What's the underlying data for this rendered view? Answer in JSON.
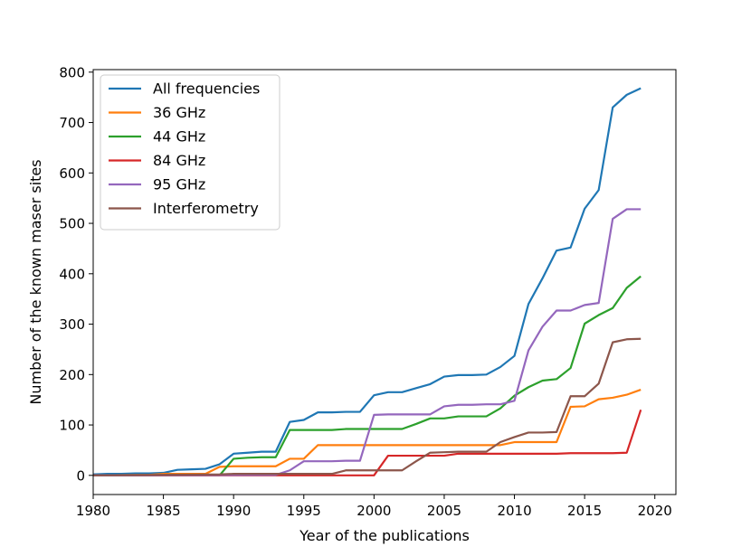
{
  "chart_data": {
    "type": "line",
    "title": "",
    "xlabel": "Year of the publications",
    "ylabel": "Number of the known maser sites",
    "xlim": [
      1980,
      2021.5
    ],
    "ylim": [
      -38,
      805
    ],
    "xticks": [
      1980,
      1985,
      1990,
      1995,
      2000,
      2005,
      2010,
      2015,
      2020
    ],
    "yticks": [
      0,
      100,
      200,
      300,
      400,
      500,
      600,
      700,
      800
    ],
    "grid": false,
    "legend_position": "upper-left",
    "series": [
      {
        "name": "All frequencies",
        "color": "#1f77b4",
        "points": [
          [
            1980,
            2
          ],
          [
            1981,
            3
          ],
          [
            1982,
            3
          ],
          [
            1983,
            4
          ],
          [
            1984,
            4
          ],
          [
            1985,
            5
          ],
          [
            1986,
            11
          ],
          [
            1987,
            12
          ],
          [
            1988,
            13
          ],
          [
            1989,
            22
          ],
          [
            1990,
            43
          ],
          [
            1991,
            45
          ],
          [
            1992,
            47
          ],
          [
            1993,
            47
          ],
          [
            1994,
            106
          ],
          [
            1995,
            110
          ],
          [
            1996,
            125
          ],
          [
            1997,
            125
          ],
          [
            1998,
            126
          ],
          [
            1999,
            126
          ],
          [
            2000,
            159
          ],
          [
            2001,
            165
          ],
          [
            2002,
            165
          ],
          [
            2003,
            173
          ],
          [
            2004,
            181
          ],
          [
            2005,
            196
          ],
          [
            2006,
            199
          ],
          [
            2007,
            199
          ],
          [
            2008,
            200
          ],
          [
            2009,
            215
          ],
          [
            2010,
            237
          ],
          [
            2011,
            340
          ],
          [
            2012,
            391
          ],
          [
            2013,
            446
          ],
          [
            2014,
            452
          ],
          [
            2015,
            529
          ],
          [
            2016,
            566
          ],
          [
            2017,
            730
          ],
          [
            2018,
            755
          ],
          [
            2019,
            768
          ]
        ]
      },
      {
        "name": "36 GHz",
        "color": "#ff7f0e",
        "points": [
          [
            1980,
            0
          ],
          [
            1984,
            1
          ],
          [
            1985,
            3
          ],
          [
            1986,
            3
          ],
          [
            1987,
            3
          ],
          [
            1988,
            3
          ],
          [
            1989,
            17
          ],
          [
            1990,
            18
          ],
          [
            1991,
            18
          ],
          [
            1992,
            18
          ],
          [
            1993,
            18
          ],
          [
            1994,
            33
          ],
          [
            1995,
            33
          ],
          [
            1996,
            60
          ],
          [
            1997,
            60
          ],
          [
            1998,
            60
          ],
          [
            1999,
            60
          ],
          [
            2000,
            60
          ],
          [
            2001,
            60
          ],
          [
            2002,
            60
          ],
          [
            2003,
            60
          ],
          [
            2004,
            60
          ],
          [
            2005,
            60
          ],
          [
            2006,
            60
          ],
          [
            2007,
            60
          ],
          [
            2008,
            60
          ],
          [
            2009,
            60
          ],
          [
            2010,
            66
          ],
          [
            2011,
            66
          ],
          [
            2012,
            66
          ],
          [
            2013,
            66
          ],
          [
            2014,
            136
          ],
          [
            2015,
            137
          ],
          [
            2016,
            151
          ],
          [
            2017,
            154
          ],
          [
            2018,
            160
          ],
          [
            2019,
            170
          ]
        ]
      },
      {
        "name": "44 GHz",
        "color": "#2ca02c",
        "points": [
          [
            1980,
            0
          ],
          [
            1989,
            0
          ],
          [
            1990,
            33
          ],
          [
            1991,
            35
          ],
          [
            1992,
            36
          ],
          [
            1993,
            36
          ],
          [
            1994,
            90
          ],
          [
            1995,
            90
          ],
          [
            1996,
            90
          ],
          [
            1997,
            90
          ],
          [
            1998,
            92
          ],
          [
            1999,
            92
          ],
          [
            2000,
            92
          ],
          [
            2001,
            92
          ],
          [
            2002,
            92
          ],
          [
            2003,
            102
          ],
          [
            2004,
            113
          ],
          [
            2005,
            113
          ],
          [
            2006,
            117
          ],
          [
            2007,
            117
          ],
          [
            2008,
            117
          ],
          [
            2009,
            133
          ],
          [
            2010,
            158
          ],
          [
            2011,
            175
          ],
          [
            2012,
            188
          ],
          [
            2013,
            191
          ],
          [
            2014,
            213
          ],
          [
            2015,
            301
          ],
          [
            2016,
            318
          ],
          [
            2017,
            332
          ],
          [
            2018,
            372
          ],
          [
            2019,
            395
          ]
        ]
      },
      {
        "name": "84 GHz",
        "color": "#d62728",
        "points": [
          [
            1980,
            0
          ],
          [
            1999,
            0
          ],
          [
            2000,
            0
          ],
          [
            2001,
            39
          ],
          [
            2002,
            39
          ],
          [
            2003,
            39
          ],
          [
            2004,
            39
          ],
          [
            2005,
            39
          ],
          [
            2006,
            43
          ],
          [
            2007,
            43
          ],
          [
            2008,
            43
          ],
          [
            2009,
            43
          ],
          [
            2010,
            43
          ],
          [
            2011,
            43
          ],
          [
            2012,
            43
          ],
          [
            2013,
            43
          ],
          [
            2014,
            44
          ],
          [
            2015,
            44
          ],
          [
            2016,
            44
          ],
          [
            2017,
            44
          ],
          [
            2018,
            45
          ],
          [
            2019,
            130
          ]
        ]
      },
      {
        "name": "95 GHz",
        "color": "#9467bd",
        "points": [
          [
            1980,
            0
          ],
          [
            1993,
            1
          ],
          [
            1994,
            10
          ],
          [
            1995,
            28
          ],
          [
            1996,
            28
          ],
          [
            1997,
            28
          ],
          [
            1998,
            29
          ],
          [
            1999,
            29
          ],
          [
            2000,
            120
          ],
          [
            2001,
            121
          ],
          [
            2002,
            121
          ],
          [
            2003,
            121
          ],
          [
            2004,
            121
          ],
          [
            2005,
            137
          ],
          [
            2006,
            140
          ],
          [
            2007,
            140
          ],
          [
            2008,
            141
          ],
          [
            2009,
            141
          ],
          [
            2010,
            148
          ],
          [
            2011,
            248
          ],
          [
            2012,
            295
          ],
          [
            2013,
            327
          ],
          [
            2014,
            327
          ],
          [
            2015,
            338
          ],
          [
            2016,
            342
          ],
          [
            2017,
            509
          ],
          [
            2018,
            528
          ],
          [
            2019,
            528
          ]
        ]
      },
      {
        "name": "Interferometry",
        "color": "#8c564b",
        "points": [
          [
            1980,
            0
          ],
          [
            1989,
            2
          ],
          [
            1990,
            3
          ],
          [
            1991,
            3
          ],
          [
            1992,
            3
          ],
          [
            1993,
            3
          ],
          [
            1994,
            3
          ],
          [
            1995,
            3
          ],
          [
            1996,
            3
          ],
          [
            1997,
            3
          ],
          [
            1998,
            10
          ],
          [
            1999,
            10
          ],
          [
            2000,
            10
          ],
          [
            2001,
            10
          ],
          [
            2002,
            10
          ],
          [
            2003,
            28
          ],
          [
            2004,
            45
          ],
          [
            2005,
            46
          ],
          [
            2006,
            47
          ],
          [
            2007,
            47
          ],
          [
            2008,
            47
          ],
          [
            2009,
            66
          ],
          [
            2010,
            76
          ],
          [
            2011,
            85
          ],
          [
            2012,
            85
          ],
          [
            2013,
            86
          ],
          [
            2014,
            157
          ],
          [
            2015,
            157
          ],
          [
            2016,
            182
          ],
          [
            2017,
            264
          ],
          [
            2018,
            270
          ],
          [
            2019,
            271
          ]
        ]
      }
    ]
  }
}
